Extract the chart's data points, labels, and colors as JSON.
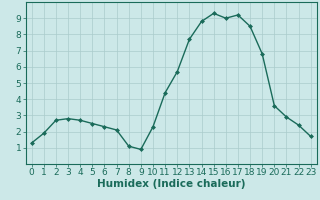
{
  "x": [
    0,
    1,
    2,
    3,
    4,
    5,
    6,
    7,
    8,
    9,
    10,
    11,
    12,
    13,
    14,
    15,
    16,
    17,
    18,
    19,
    20,
    21,
    22,
    23
  ],
  "y": [
    1.3,
    1.9,
    2.7,
    2.8,
    2.7,
    2.5,
    2.3,
    2.1,
    1.1,
    0.9,
    2.3,
    4.4,
    5.7,
    7.7,
    8.8,
    9.3,
    9.0,
    9.2,
    8.5,
    6.8,
    3.6,
    2.9,
    2.4,
    1.7
  ],
  "line_color": "#1a6b5a",
  "marker": "D",
  "marker_size": 2.0,
  "bg_color": "#cce8e8",
  "grid_color": "#aacccc",
  "xlabel": "Humidex (Indice chaleur)",
  "ylim": [
    0,
    10
  ],
  "xlim": [
    -0.5,
    23.5
  ],
  "xticks": [
    0,
    1,
    2,
    3,
    4,
    5,
    6,
    7,
    8,
    9,
    10,
    11,
    12,
    13,
    14,
    15,
    16,
    17,
    18,
    19,
    20,
    21,
    22,
    23
  ],
  "yticks": [
    1,
    2,
    3,
    4,
    5,
    6,
    7,
    8,
    9
  ],
  "xlabel_fontsize": 7.5,
  "tick_fontsize": 6.5,
  "line_width": 1.0
}
